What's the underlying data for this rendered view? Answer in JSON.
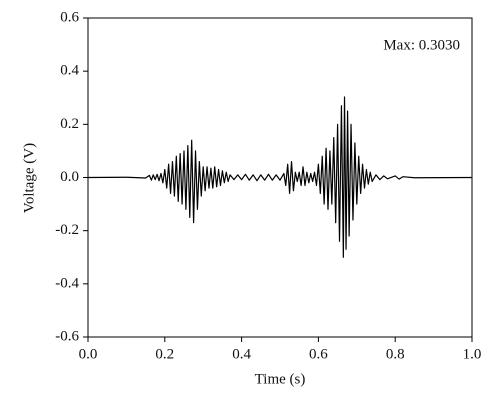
{
  "chart_data": {
    "type": "line",
    "x_label": "Time (s)",
    "y_label": "Voltage (V)",
    "annotation": "Max: 0.3030",
    "xlim": [
      0.0,
      1.0
    ],
    "xticks": [
      {
        "value": 0.0,
        "label": "0.0"
      },
      0.2,
      0.4,
      0.6,
      0.8,
      {
        "value": 1.0,
        "label": "1.0"
      }
    ],
    "ylim": [
      -0.6,
      0.6
    ],
    "yticks": [
      -0.6,
      -0.4,
      -0.2,
      {
        "value": 0.0,
        "label": "0.0"
      },
      0.2,
      0.4,
      0.6
    ],
    "grid": false,
    "series": [
      {
        "color": "#000000",
        "x": [
          0,
          0.1,
          0.15,
          0.16,
          0.165,
          0.17,
          0.175,
          0.18,
          0.185,
          0.19,
          0.195,
          0.2,
          0.205,
          0.21,
          0.215,
          0.22,
          0.225,
          0.23,
          0.235,
          0.24,
          0.245,
          0.25,
          0.255,
          0.26,
          0.265,
          0.27,
          0.275,
          0.28,
          0.285,
          0.29,
          0.295,
          0.3,
          0.305,
          0.31,
          0.315,
          0.32,
          0.325,
          0.33,
          0.335,
          0.34,
          0.345,
          0.35,
          0.355,
          0.36,
          0.365,
          0.37,
          0.38,
          0.39,
          0.4,
          0.41,
          0.42,
          0.43,
          0.44,
          0.45,
          0.46,
          0.47,
          0.48,
          0.49,
          0.5,
          0.51,
          0.515,
          0.52,
          0.525,
          0.53,
          0.535,
          0.54,
          0.545,
          0.55,
          0.555,
          0.56,
          0.565,
          0.57,
          0.575,
          0.58,
          0.585,
          0.59,
          0.595,
          0.6,
          0.605,
          0.61,
          0.615,
          0.62,
          0.625,
          0.63,
          0.635,
          0.64,
          0.645,
          0.65,
          0.655,
          0.66,
          0.665,
          0.668,
          0.672,
          0.676,
          0.68,
          0.685,
          0.69,
          0.695,
          0.7,
          0.705,
          0.71,
          0.715,
          0.72,
          0.725,
          0.73,
          0.735,
          0.74,
          0.75,
          0.76,
          0.77,
          0.78,
          0.8,
          0.81,
          0.82,
          0.85,
          1.0
        ],
        "values": [
          0,
          0.001,
          -0.002,
          0.008,
          -0.01,
          0.01,
          -0.008,
          0.012,
          -0.012,
          0.015,
          -0.02,
          0.03,
          -0.04,
          0.05,
          -0.06,
          0.06,
          -0.07,
          0.08,
          -0.09,
          0.09,
          -0.1,
          0.1,
          -0.12,
          0.12,
          -0.15,
          0.14,
          -0.17,
          0.1,
          -0.12,
          0.06,
          -0.07,
          0.04,
          -0.05,
          0.04,
          -0.04,
          0.035,
          -0.04,
          0.04,
          -0.035,
          0.03,
          -0.03,
          0.025,
          -0.02,
          0.02,
          -0.015,
          0.01,
          -0.008,
          0.01,
          -0.008,
          0.012,
          -0.01,
          0.01,
          -0.012,
          0.01,
          -0.01,
          0.012,
          -0.01,
          0.01,
          -0.01,
          0.015,
          -0.03,
          0.05,
          -0.06,
          0.06,
          -0.05,
          0.02,
          -0.015,
          0.02,
          -0.03,
          0.04,
          -0.03,
          0.02,
          -0.02,
          0.015,
          -0.015,
          0.02,
          -0.03,
          0.05,
          -0.06,
          0.08,
          -0.1,
          0.11,
          -0.12,
          0.1,
          -0.1,
          0.15,
          -0.17,
          0.2,
          -0.24,
          0.27,
          -0.3,
          0.303,
          -0.27,
          0.25,
          -0.22,
          0.2,
          -0.16,
          0.13,
          -0.1,
          0.08,
          -0.06,
          0.05,
          -0.04,
          0.03,
          -0.025,
          0.02,
          -0.015,
          0.01,
          -0.008,
          0.006,
          -0.005,
          0.006,
          -0.006,
          0.003,
          -0.001,
          0
        ]
      }
    ]
  }
}
